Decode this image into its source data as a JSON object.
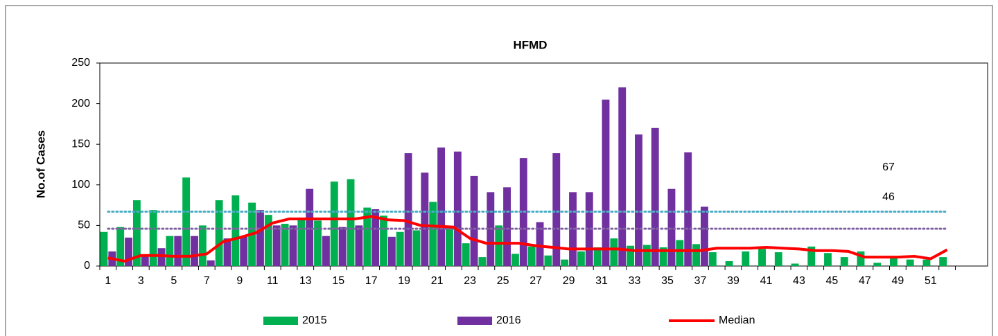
{
  "chart_data": {
    "type": "bar_line",
    "title": "HFMD",
    "ylabel": "No.of Cases",
    "categories": [
      "1",
      null,
      "3",
      null,
      "5",
      null,
      "7",
      null,
      "9",
      null,
      "11",
      null,
      "13",
      null,
      "15",
      null,
      "17",
      null,
      "19",
      null,
      "21",
      null,
      "23",
      null,
      "25",
      null,
      "27",
      null,
      "29",
      null,
      "31",
      null,
      "33",
      null,
      "35",
      null,
      "37",
      null,
      "39",
      null,
      "41",
      null,
      "43",
      null,
      "45",
      null,
      "47",
      null,
      "49",
      null,
      "51",
      null
    ],
    "series": [
      {
        "name": "2015",
        "kind": "bar",
        "color": "#00b050",
        "values": [
          42,
          48,
          81,
          69,
          37,
          109,
          50,
          81,
          87,
          78,
          63,
          52,
          57,
          56,
          104,
          107,
          72,
          62,
          42,
          44,
          79,
          49,
          28,
          11,
          50,
          15,
          24,
          13,
          8,
          18,
          23,
          34,
          25,
          26,
          23,
          32,
          27,
          17,
          6,
          18,
          21,
          17,
          3,
          24,
          16,
          11,
          18,
          4,
          10,
          8,
          8,
          11
        ]
      },
      {
        "name": "2016",
        "kind": "bar",
        "color": "#7030a0",
        "values": [
          18,
          35,
          14,
          22,
          37,
          37,
          7,
          34,
          36,
          69,
          50,
          50,
          95,
          37,
          48,
          50,
          70,
          36,
          139,
          115,
          146,
          141,
          111,
          91,
          97,
          133,
          54,
          139,
          91,
          91,
          205,
          220,
          162,
          170,
          95,
          140,
          73,
          null,
          null,
          null,
          null,
          null,
          null,
          null,
          null,
          null,
          null,
          null,
          null,
          null,
          null,
          null
        ]
      },
      {
        "name": "Median",
        "kind": "line",
        "color": "#ff0000",
        "values": [
          10,
          6,
          13,
          13,
          12,
          12,
          15,
          30,
          35,
          41,
          53,
          58,
          58,
          58,
          58,
          58,
          61,
          57,
          56,
          50,
          49,
          48,
          34,
          28,
          28,
          28,
          25,
          23,
          21,
          21,
          21,
          21,
          19,
          19,
          19,
          19,
          19,
          22,
          22,
          22,
          23,
          22,
          21,
          19,
          19,
          18,
          11,
          11,
          11,
          12,
          9,
          20
        ]
      }
    ],
    "thresholds": [
      {
        "value": 67,
        "color": "#4bacc6"
      },
      {
        "value": 46,
        "color": "#8064a2"
      }
    ],
    "ylim": [
      0,
      250
    ],
    "yticks": [
      0,
      50,
      100,
      150,
      200,
      250
    ],
    "grid": false,
    "legend": "bottom"
  }
}
